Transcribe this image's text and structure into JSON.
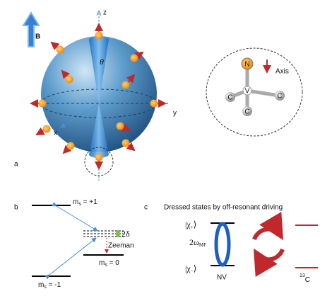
{
  "panel_a": {
    "label": "a",
    "field": "B",
    "axis_z": "z",
    "axis_y": "y",
    "axis_x": "x",
    "angle": "θ",
    "defect": {
      "nitrogen": "N",
      "vacancy": "V",
      "carbons": [
        "C",
        "C",
        "C"
      ],
      "axis": "Axis"
    }
  },
  "panel_b": {
    "label": "b",
    "levels": [
      {
        "symbol": "m",
        "sub": "s",
        "value": " = +1"
      },
      {
        "symbol": "m",
        "sub": "s",
        "value": " = 0"
      },
      {
        "symbol": "m",
        "sub": "s",
        "value": " = -1"
      }
    ],
    "splitting": "2δ",
    "zeeman": "Zeeman"
  },
  "panel_c": {
    "label": "c",
    "title": "Dressed states by off-resonant driving",
    "upper_state": {
      "open": "|χ",
      "sub": "+",
      "close": "⟩"
    },
    "lower_state": {
      "open": "|χ",
      "sub": "−",
      "close": "⟩"
    },
    "frequency": {
      "main": "2ω",
      "sub": "MF"
    },
    "nv": "NV",
    "nucleus": {
      "sup": "13",
      "main": "C"
    }
  }
}
